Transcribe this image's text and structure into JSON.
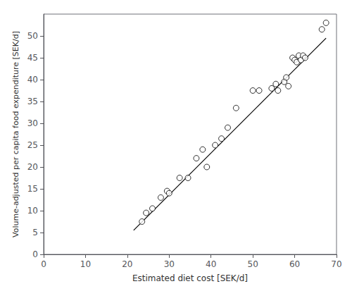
{
  "chart_data": {
    "type": "scatter",
    "xlabel": "Estimated diet cost [SEK/d]",
    "ylabel": "Volume-adjusted per capita food expenditure [SEK/d]",
    "series": [
      {
        "type": "scatter",
        "marker": "circle",
        "color": "black",
        "x": [
          23.5,
          24.5,
          26.0,
          28.0,
          29.5,
          30.0,
          32.5,
          34.5,
          36.5,
          38.0,
          39.0,
          41.0,
          42.5,
          44.0,
          46.0,
          50.0,
          51.5,
          54.5,
          55.5,
          56.0,
          57.5,
          58.0,
          58.5,
          59.5,
          60.0,
          60.5,
          61.0,
          61.5,
          62.0,
          62.5,
          66.5,
          67.5
        ],
        "values": [
          7.5,
          9.5,
          10.5,
          13.0,
          14.5,
          14.0,
          17.5,
          17.5,
          22.0,
          24.0,
          20.0,
          25.0,
          26.5,
          29.0,
          33.5,
          37.5,
          37.5,
          38.0,
          39.0,
          37.5,
          39.5,
          40.5,
          38.5,
          45.0,
          44.5,
          44.0,
          45.5,
          44.5,
          45.5,
          45.0,
          51.5,
          53.0
        ]
      },
      {
        "type": "line",
        "line_style": "solid",
        "color": "black",
        "x": [
          21.5,
          67.5
        ],
        "values": [
          5.5,
          49.5
        ]
      }
    ],
    "xlim": [
      0,
      70
    ],
    "ylim": [
      0,
      55
    ],
    "xticks": [
      0,
      10,
      20,
      30,
      40,
      50,
      60,
      70
    ],
    "yticks": [
      0,
      5,
      10,
      15,
      20,
      25,
      30,
      35,
      40,
      45,
      50
    ],
    "grid": false
  }
}
